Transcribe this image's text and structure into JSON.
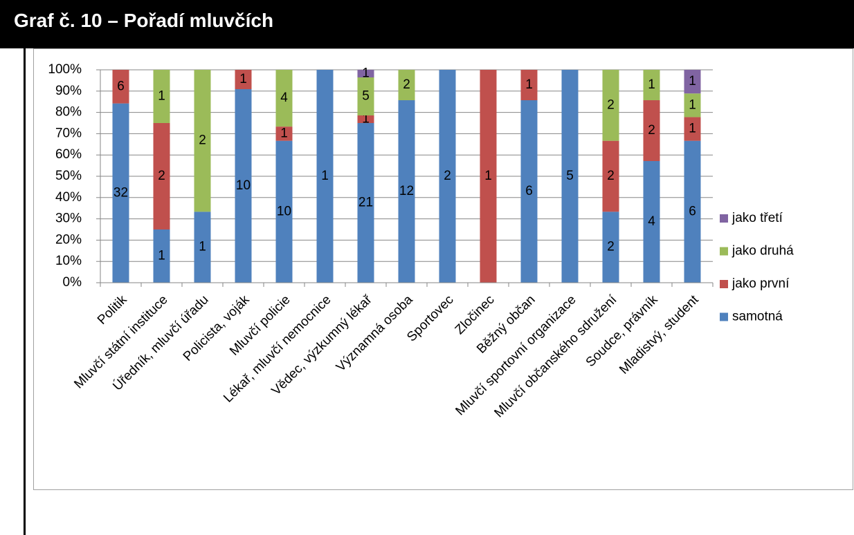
{
  "chart_data": {
    "type": "bar",
    "stacking": "percent",
    "title": "Graf č. 10 – Pořadí mluvčích",
    "categories": [
      "Politik",
      "Mluvčí státní instituce",
      "Úředník, mluvčí úřadu",
      "Policista, voják",
      "Mluvčí policie",
      "Lékař, mluvčí nemocnice",
      "Vědec, výzkumný lékař",
      "Významná osoba",
      "Sportovec",
      "Zločinec",
      "Běžný občan",
      "Mluvčí sportovní organizace",
      "Mluvčí občanského sdružení",
      "Soudce, právník",
      "Mladistvý, student"
    ],
    "series": [
      {
        "name": "samotná",
        "color": "#4f81bd",
        "values": [
          32,
          1,
          1,
          10,
          10,
          1,
          21,
          12,
          2,
          0,
          6,
          5,
          2,
          4,
          6
        ]
      },
      {
        "name": "jako první",
        "color": "#c0504d",
        "values": [
          6,
          2,
          0,
          1,
          1,
          0,
          1,
          0,
          0,
          1,
          1,
          0,
          2,
          2,
          1
        ]
      },
      {
        "name": "jako druhá",
        "color": "#9bbb59",
        "values": [
          0,
          1,
          2,
          0,
          4,
          0,
          5,
          2,
          0,
          0,
          0,
          0,
          2,
          1,
          1
        ]
      },
      {
        "name": "jako třetí",
        "color": "#8064a2",
        "values": [
          0,
          0,
          0,
          0,
          0,
          0,
          1,
          0,
          0,
          0,
          0,
          0,
          0,
          0,
          1
        ]
      }
    ],
    "ylim": [
      0,
      100
    ],
    "yticks": [
      {
        "value": 0,
        "label": "0%"
      },
      {
        "value": 10,
        "label": "10%"
      },
      {
        "value": 20,
        "label": "20%"
      },
      {
        "value": 30,
        "label": "30%"
      },
      {
        "value": 40,
        "label": "40%"
      },
      {
        "value": 50,
        "label": "50%"
      },
      {
        "value": 60,
        "label": "60%"
      },
      {
        "value": 70,
        "label": "70%"
      },
      {
        "value": 80,
        "label": "80%"
      },
      {
        "value": 90,
        "label": "90%"
      },
      {
        "value": 100,
        "label": "100%"
      }
    ],
    "grid": true,
    "legend": "right"
  }
}
